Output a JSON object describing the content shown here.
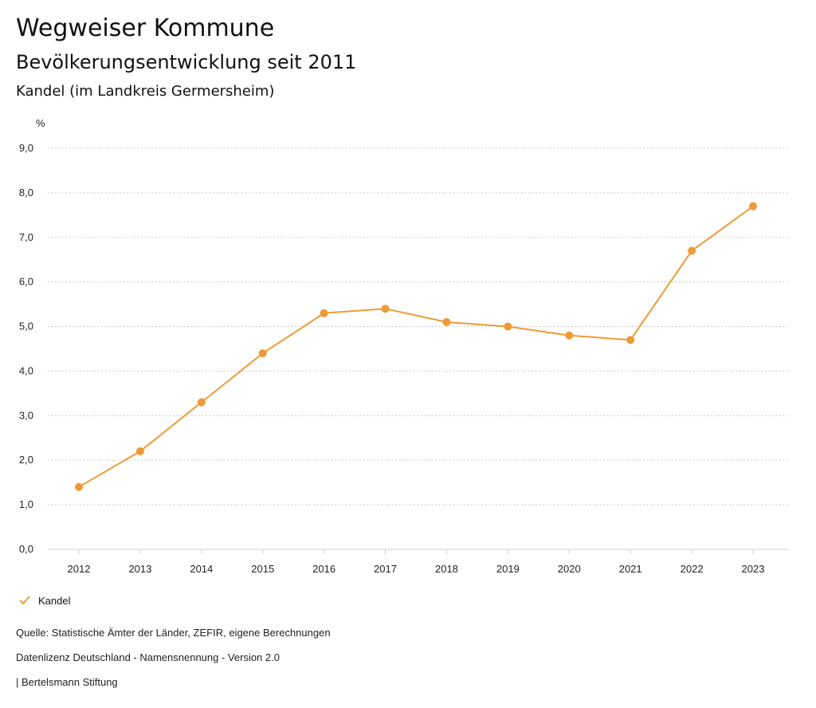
{
  "header": {
    "title": "Wegweiser Kommune",
    "subtitle": "Bevölkerungsentwicklung seit 2011",
    "region": "Kandel (im Landkreis Germersheim)"
  },
  "chart_data": {
    "type": "line",
    "ylabel": "%",
    "xlabel": "",
    "ylim": [
      0,
      9
    ],
    "yticks": [
      0,
      1,
      2,
      3,
      4,
      5,
      6,
      7,
      8,
      9
    ],
    "ytick_labels": [
      "0,0",
      "1,0",
      "2,0",
      "3,0",
      "4,0",
      "5,0",
      "6,0",
      "7,0",
      "8,0",
      "9,0"
    ],
    "grid": true,
    "categories": [
      "2012",
      "2013",
      "2014",
      "2015",
      "2016",
      "2017",
      "2018",
      "2019",
      "2020",
      "2021",
      "2022",
      "2023"
    ],
    "series": [
      {
        "name": "Kandel",
        "color": "#ee9a36",
        "values": [
          1.4,
          2.2,
          3.3,
          4.4,
          5.3,
          5.4,
          5.1,
          5.0,
          4.8,
          4.7,
          6.7,
          7.7
        ]
      }
    ],
    "legend_position": "bottom-left"
  },
  "legend": {
    "label": "Kandel",
    "color": "#ee9a36"
  },
  "footer": {
    "source": "Quelle: Statistische Ämter der Länder, ZEFIR, eigene Berechnungen",
    "license": "Datenlizenz Deutschland - Namensnennung - Version 2.0",
    "publisher": "| Bertelsmann Stiftung"
  }
}
